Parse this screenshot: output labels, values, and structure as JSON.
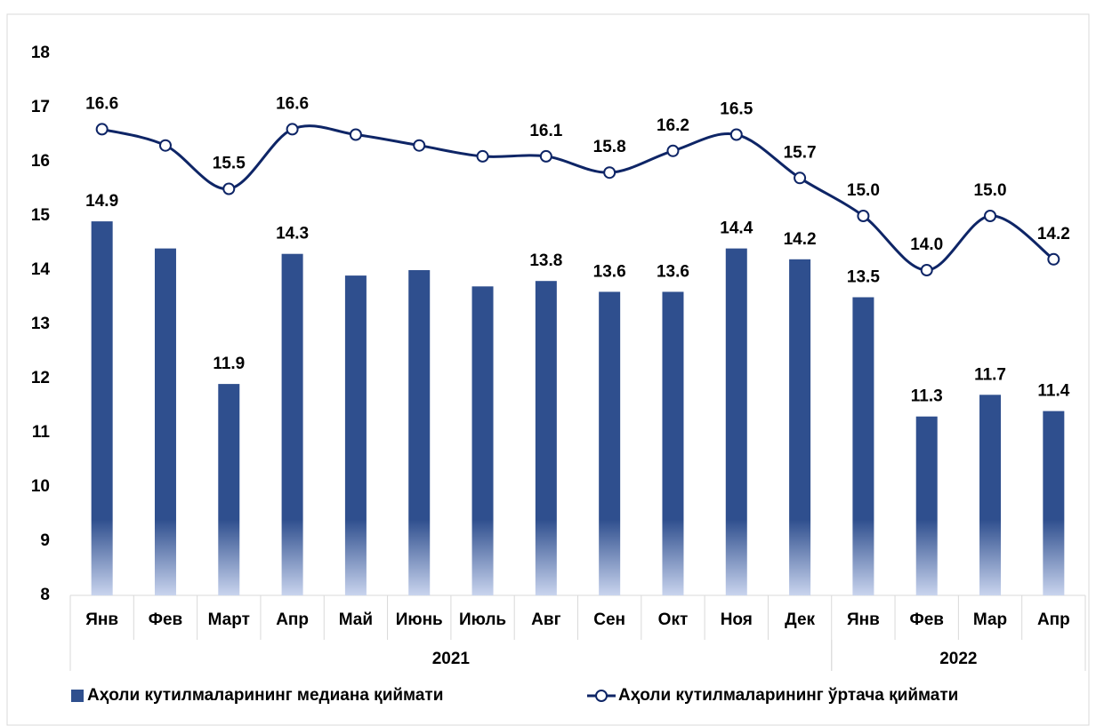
{
  "chart_data": {
    "type": "bar_line",
    "categories": [
      "Янв",
      "Фев",
      "Март",
      "Апр",
      "Май",
      "Июнь",
      "Июль",
      "Авг",
      "Сен",
      "Окт",
      "Ноя",
      "Дек",
      "Янв",
      "Фев",
      "Мар",
      "Апр"
    ],
    "groups": [
      {
        "label": "2021",
        "count": 12
      },
      {
        "label": "2022",
        "count": 4
      }
    ],
    "series": [
      {
        "name": "Аҳоли кутилмаларининг медиана қиймати",
        "type": "bar",
        "color": "#2f4f8e",
        "values": [
          14.9,
          14.4,
          11.9,
          14.3,
          13.9,
          14.0,
          13.7,
          13.8,
          13.6,
          13.6,
          14.4,
          14.2,
          13.5,
          11.3,
          11.7,
          11.4
        ],
        "value_labels": [
          "14.9",
          null,
          "11.9",
          "14.3",
          null,
          null,
          null,
          "13.8",
          "13.6",
          "13.6",
          "14.4",
          "14.2",
          "13.5",
          "11.3",
          "11.7",
          "11.4"
        ]
      },
      {
        "name": "Аҳоли кутилмаларининг ўртача қиймати",
        "type": "line",
        "color": "#0e2566",
        "values": [
          16.6,
          16.3,
          15.5,
          16.6,
          16.5,
          16.3,
          16.1,
          16.1,
          15.8,
          16.2,
          16.5,
          15.7,
          15.0,
          14.0,
          15.0,
          14.2
        ],
        "value_labels": [
          "16.6",
          null,
          "15.5",
          "16.6",
          null,
          null,
          null,
          "16.1",
          "15.8",
          "16.2",
          "16.5",
          "15.7",
          "15.0",
          "14.0",
          "15.0",
          "14.2"
        ]
      }
    ],
    "ylim": [
      8,
      18
    ],
    "yticks": [
      8,
      9,
      10,
      11,
      12,
      13,
      14,
      15,
      16,
      17,
      18
    ]
  }
}
